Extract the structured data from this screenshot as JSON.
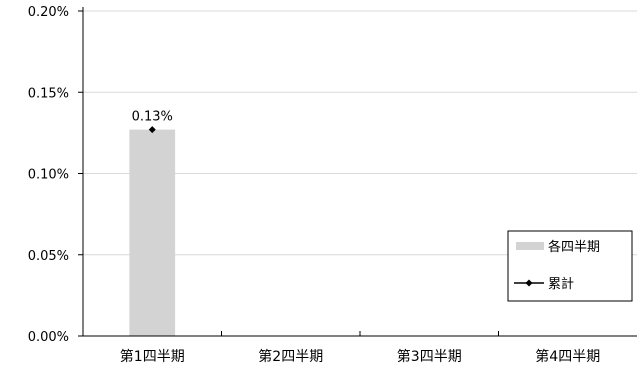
{
  "chart_data": {
    "type": "bar",
    "categories": [
      "第1四半期",
      "第2四半期",
      "第3四半期",
      "第4四半期"
    ],
    "series": [
      {
        "name": "各四半期",
        "type": "bar",
        "values": [
          0.127,
          null,
          null,
          null
        ],
        "color": "#d3d3d3"
      },
      {
        "name": "累計",
        "type": "line",
        "values": [
          0.127,
          null,
          null,
          null
        ],
        "color": "#000000",
        "marker": "diamond"
      }
    ],
    "data_labels": [
      "0.13%",
      "",
      "",
      ""
    ],
    "y_ticks": [
      "0.00%",
      "0.05%",
      "0.10%",
      "0.15%",
      "0.20%"
    ],
    "ylim": [
      0,
      0.2
    ],
    "y_unit": "%",
    "grid": "horizontal",
    "legend": {
      "placement": "right",
      "items": [
        "各四半期",
        "累計"
      ]
    }
  }
}
